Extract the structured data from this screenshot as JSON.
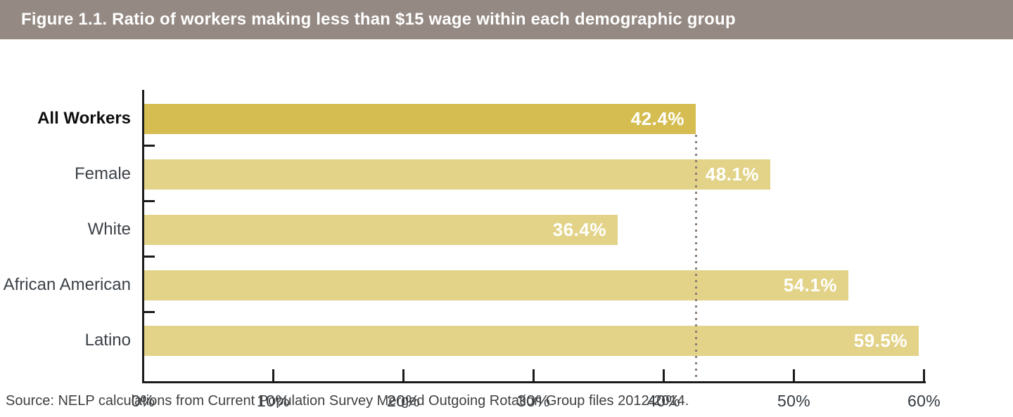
{
  "header": {
    "title": "Figure 1.1. Ratio of workers making less than $15 wage within each demographic group"
  },
  "chart_data": {
    "type": "bar",
    "orientation": "horizontal",
    "title": "Figure 1.1. Ratio of workers making less than $15 wage within each demographic group",
    "categories": [
      "All Workers",
      "Female",
      "White",
      "African American",
      "Latino"
    ],
    "values": [
      42.4,
      48.1,
      36.4,
      54.1,
      59.5
    ],
    "value_labels": [
      "42.4%",
      "48.1%",
      "36.4%",
      "54.1%",
      "59.5%"
    ],
    "highlighted_category": "All Workers",
    "x_ticks": [
      "0%",
      "10%",
      "20%",
      "30%",
      "40%",
      "50%",
      "60%"
    ],
    "xlim": [
      0,
      60
    ],
    "grid": false,
    "legend": false,
    "reference_line": {
      "value": 42.4,
      "style": "dotted",
      "meaning": "All Workers average"
    },
    "colors": {
      "header_background": "#948983",
      "highlight_bar": "#d5bd51",
      "bar": "#e2d388",
      "axis": "#1b1b1b",
      "reference_line": "#8b7e75",
      "value_text": "#ffffff"
    }
  },
  "footer": {
    "source": "Source: NELP calculations from Current Population Survey Merged Outgoing Rotation Group files 2012-2014."
  }
}
